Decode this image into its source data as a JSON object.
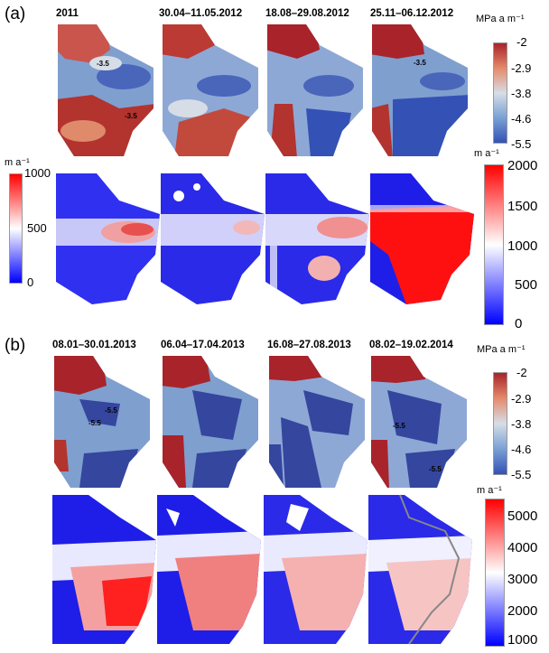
{
  "panels": {
    "a": {
      "letter": "(a)",
      "dates": [
        "2011",
        "30.04–11.05.2012",
        "18.08–29.08.2012",
        "25.11–06.12.2012"
      ],
      "stress_colorbar": {
        "unit": "MPa a m⁻¹",
        "ticks": [
          "-2",
          "-2.9",
          "-3.8",
          "-4.6",
          "-5.5"
        ],
        "colors": [
          "#a8242a",
          "#e58a6b",
          "#d6dde6",
          "#7aa0d4",
          "#3451b5"
        ]
      },
      "velocity_colorbar_left": {
        "unit": "m a⁻¹",
        "ticks": [
          "1000",
          "500",
          "0"
        ],
        "colors": [
          "#ff0000",
          "#ffffff",
          "#0000ff"
        ]
      },
      "velocity_colorbar_right": {
        "unit": "m a⁻¹",
        "ticks": [
          "2000",
          "1500",
          "1000",
          "500",
          "0"
        ],
        "colors": [
          "#ff0000",
          "#ffffff",
          "#0000ff"
        ]
      },
      "contour_labels": [
        "-3.5",
        "-3.5",
        "-3.5"
      ]
    },
    "b": {
      "letter": "(b)",
      "dates": [
        "08.01–30.01.2013",
        "06.04–17.04.2013",
        "16.08–27.08.2013",
        "08.02–19.02.2014"
      ],
      "stress_colorbar": {
        "unit": "MPa a m⁻¹",
        "ticks": [
          "-2",
          "-2.9",
          "-3.8",
          "-4.6",
          "-5.5"
        ],
        "colors": [
          "#a8242a",
          "#e58a6b",
          "#d6dde6",
          "#7aa0d4",
          "#3451b5"
        ]
      },
      "velocity_colorbar": {
        "unit": "m a⁻¹",
        "ticks": [
          "5000",
          "4000",
          "3000",
          "2000",
          "1000"
        ],
        "colors": [
          "#ff0000",
          "#ffffff",
          "#0000ff"
        ]
      },
      "contour_labels": [
        "-5.5",
        "-5.5",
        "-5.5",
        "-5.5"
      ]
    }
  }
}
